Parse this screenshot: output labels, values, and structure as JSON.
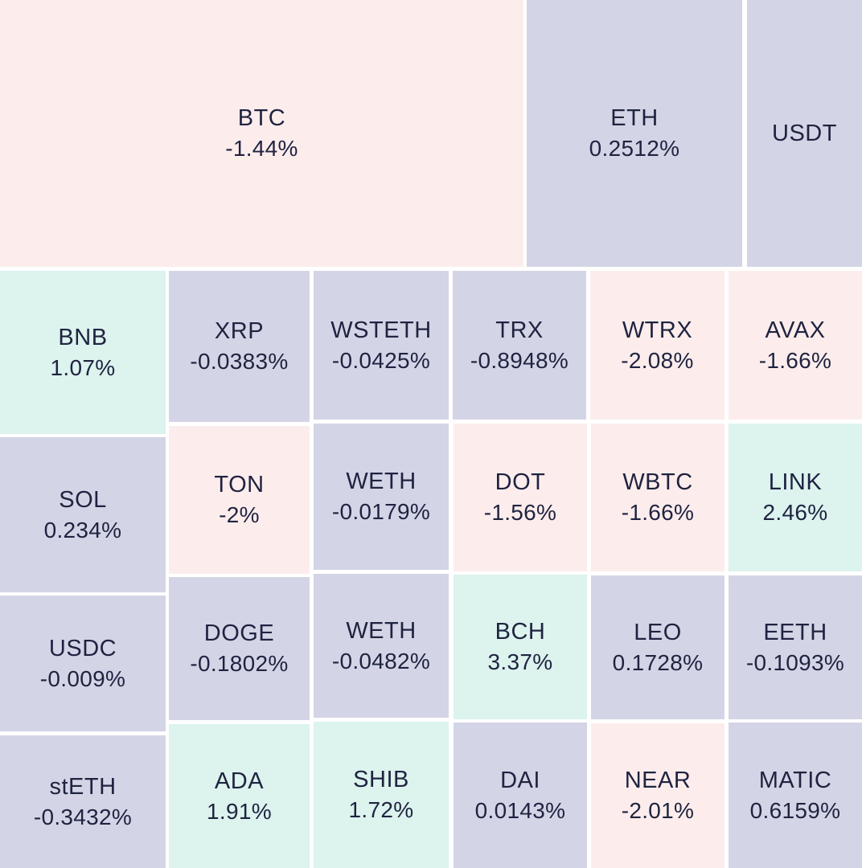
{
  "colors": {
    "down": "#fcedec",
    "neutral": "#d3d5e6",
    "up": "#dcf3ee",
    "text": "#1f2340",
    "gap": "#ffffff"
  },
  "chart_data": {
    "type": "treemap",
    "title": "",
    "items": [
      {
        "symbol": "BTC",
        "change": "-1.44%",
        "value": -1.44,
        "color_class": "down"
      },
      {
        "symbol": "ETH",
        "change": "0.2512%",
        "value": 0.2512,
        "color_class": "neutral"
      },
      {
        "symbol": "USDT",
        "change": "",
        "value": null,
        "color_class": "neutral"
      },
      {
        "symbol": "BNB",
        "change": "1.07%",
        "value": 1.07,
        "color_class": "up"
      },
      {
        "symbol": "XRP",
        "change": "-0.0383%",
        "value": -0.0383,
        "color_class": "neutral"
      },
      {
        "symbol": "WSTETH",
        "change": "-0.0425%",
        "value": -0.0425,
        "color_class": "neutral"
      },
      {
        "symbol": "TRX",
        "change": "-0.8948%",
        "value": -0.8948,
        "color_class": "neutral"
      },
      {
        "symbol": "WTRX",
        "change": "-2.08%",
        "value": -2.08,
        "color_class": "down"
      },
      {
        "symbol": "AVAX",
        "change": "-1.66%",
        "value": -1.66,
        "color_class": "down"
      },
      {
        "symbol": "SOL",
        "change": "0.234%",
        "value": 0.234,
        "color_class": "neutral"
      },
      {
        "symbol": "TON",
        "change": "-2%",
        "value": -2,
        "color_class": "down"
      },
      {
        "symbol": "WETH",
        "change": "-0.0179%",
        "value": -0.0179,
        "color_class": "neutral"
      },
      {
        "symbol": "DOT",
        "change": "-1.56%",
        "value": -1.56,
        "color_class": "down"
      },
      {
        "symbol": "WBTC",
        "change": "-1.66%",
        "value": -1.66,
        "color_class": "down"
      },
      {
        "symbol": "LINK",
        "change": "2.46%",
        "value": 2.46,
        "color_class": "up"
      },
      {
        "symbol": "USDC",
        "change": "-0.009%",
        "value": -0.009,
        "color_class": "neutral"
      },
      {
        "symbol": "DOGE",
        "change": "-0.1802%",
        "value": -0.1802,
        "color_class": "neutral"
      },
      {
        "symbol": "WETH",
        "change": "-0.0482%",
        "value": -0.0482,
        "color_class": "neutral"
      },
      {
        "symbol": "BCH",
        "change": "3.37%",
        "value": 3.37,
        "color_class": "up"
      },
      {
        "symbol": "LEO",
        "change": "0.1728%",
        "value": 0.1728,
        "color_class": "neutral"
      },
      {
        "symbol": "EETH",
        "change": "-0.1093%",
        "value": -0.1093,
        "color_class": "neutral"
      },
      {
        "symbol": "stETH",
        "change": "-0.3432%",
        "value": -0.3432,
        "color_class": "neutral"
      },
      {
        "symbol": "ADA",
        "change": "1.91%",
        "value": 1.91,
        "color_class": "up"
      },
      {
        "symbol": "SHIB",
        "change": "1.72%",
        "value": 1.72,
        "color_class": "up"
      },
      {
        "symbol": "DAI",
        "change": "0.0143%",
        "value": 0.0143,
        "color_class": "neutral"
      },
      {
        "symbol": "NEAR",
        "change": "-2.01%",
        "value": -2.01,
        "color_class": "down"
      },
      {
        "symbol": "MATIC",
        "change": "0.6159%",
        "value": 0.6159,
        "color_class": "neutral"
      }
    ]
  }
}
